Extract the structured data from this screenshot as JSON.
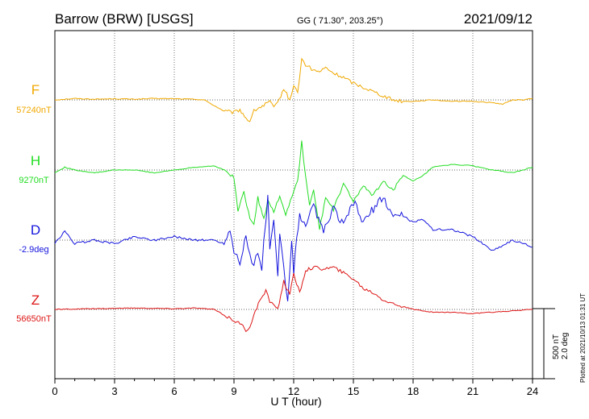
{
  "header": {
    "station": "Barrow (BRW)  [USGS]",
    "coords": "GG ( 71.30°, 203.25°)",
    "date": "2021/09/12"
  },
  "footer": {
    "plotted": "Plotted at 2021/10/13 01:31  UT"
  },
  "scale": {
    "nt": "500 nT",
    "deg": "2.0 deg"
  },
  "chart_data": {
    "type": "line",
    "xlabel": "U T (hour)",
    "xlim": [
      0,
      24
    ],
    "xticks": [
      "0",
      "3",
      "6",
      "9",
      "12",
      "15",
      "18",
      "21",
      "24"
    ],
    "grid": true,
    "series": [
      {
        "name": "F",
        "baseline_label": "57240nT",
        "color": "#f0a800",
        "unit": "nT",
        "x": [
          0,
          1,
          2,
          3,
          4,
          5,
          6,
          7,
          7.5,
          8,
          8.5,
          9,
          9.3,
          9.6,
          9.8,
          10,
          10.2,
          10.5,
          10.8,
          11,
          11.2,
          11.5,
          11.8,
          12,
          12.2,
          12.4,
          12.6,
          12.8,
          13,
          13.3,
          13.6,
          14,
          14.5,
          15,
          15.5,
          16,
          16.5,
          17,
          17.5,
          18,
          19,
          20,
          21,
          22,
          22.5,
          23,
          23.5,
          24
        ],
        "values": [
          0,
          10,
          5,
          8,
          5,
          10,
          8,
          5,
          0,
          -40,
          -80,
          -90,
          -70,
          -130,
          -150,
          -80,
          -60,
          -40,
          -10,
          -60,
          -20,
          80,
          0,
          100,
          50,
          290,
          250,
          230,
          210,
          200,
          230,
          190,
          160,
          120,
          90,
          60,
          30,
          0,
          -10,
          -10,
          0,
          -10,
          -10,
          -20,
          -30,
          0,
          0,
          10
        ]
      },
      {
        "name": "H",
        "baseline_label": "9270nT",
        "color": "#22dd22",
        "unit": "nT",
        "x": [
          0,
          0.5,
          1,
          2,
          3,
          4,
          5,
          6,
          7,
          8,
          8.5,
          9,
          9.2,
          9.5,
          9.8,
          10,
          10.2,
          10.5,
          10.7,
          11,
          11.3,
          11.6,
          12,
          12.2,
          12.4,
          12.6,
          12.8,
          13,
          13.3,
          13.6,
          14,
          14.5,
          15,
          15.5,
          16,
          16.5,
          17,
          17.5,
          18,
          18.5,
          19,
          20,
          21,
          22,
          23,
          24
        ],
        "values": [
          -20,
          20,
          0,
          -20,
          0,
          0,
          -20,
          0,
          20,
          30,
          0,
          -50,
          -300,
          -150,
          -350,
          -380,
          -200,
          -350,
          -220,
          -300,
          -180,
          -320,
          -150,
          -80,
          200,
          -50,
          -250,
          -150,
          -420,
          -200,
          -280,
          -100,
          -220,
          -120,
          -180,
          -80,
          -140,
          -40,
          -80,
          -40,
          20,
          40,
          30,
          0,
          -20,
          20
        ]
      },
      {
        "name": "D",
        "baseline_label": "-2.9deg",
        "color": "#1515dd",
        "unit": "deg",
        "x": [
          0,
          0.5,
          1,
          2,
          3,
          4,
          5,
          6,
          7,
          8,
          8.5,
          8.8,
          9,
          9.3,
          9.6,
          9.8,
          10,
          10.2,
          10.4,
          10.6,
          10.7,
          10.8,
          11,
          11.2,
          11.3,
          11.5,
          11.7,
          11.9,
          12,
          12.3,
          12.6,
          13,
          13.5,
          14,
          14.5,
          15,
          15.5,
          16,
          16.5,
          17,
          17.5,
          18,
          18.5,
          19,
          20,
          21,
          22,
          23,
          24
        ],
        "values": [
          -0.1,
          0.25,
          -0.1,
          0,
          -0.1,
          0.1,
          0,
          0.1,
          0,
          0,
          -0.1,
          0.3,
          -0.3,
          -0.6,
          0.1,
          -0.5,
          -0.7,
          -0.4,
          -0.8,
          0.6,
          1.2,
          -0.2,
          0.5,
          -1.1,
          0.2,
          -0.8,
          -1.8,
          0.1,
          -0.9,
          0.8,
          0.3,
          1.0,
          0.2,
          0.9,
          0.4,
          1.1,
          0.5,
          0.9,
          1.2,
          0.7,
          0.7,
          0.5,
          0.6,
          0.3,
          0.3,
          0.1,
          -0.3,
          0,
          -0.2
        ]
      },
      {
        "name": "Z",
        "baseline_label": "56650nT",
        "color": "#dd1515",
        "unit": "nT",
        "x": [
          0,
          2,
          4,
          6,
          7,
          8,
          8.5,
          9,
          9.3,
          9.6,
          9.8,
          10,
          10.3,
          10.6,
          10.8,
          11,
          11.2,
          11.5,
          11.8,
          12,
          12.3,
          12.6,
          13,
          13.5,
          14,
          14.5,
          15,
          15.5,
          16,
          16.5,
          17,
          17.5,
          18,
          19,
          20,
          21,
          22,
          23,
          24
        ],
        "values": [
          0,
          5,
          10,
          5,
          10,
          0,
          -40,
          -80,
          -100,
          -150,
          -120,
          -40,
          60,
          130,
          60,
          40,
          0,
          200,
          100,
          250,
          120,
          280,
          300,
          290,
          300,
          260,
          220,
          150,
          120,
          70,
          40,
          20,
          0,
          -20,
          -20,
          -30,
          -20,
          -10,
          0
        ]
      }
    ]
  }
}
